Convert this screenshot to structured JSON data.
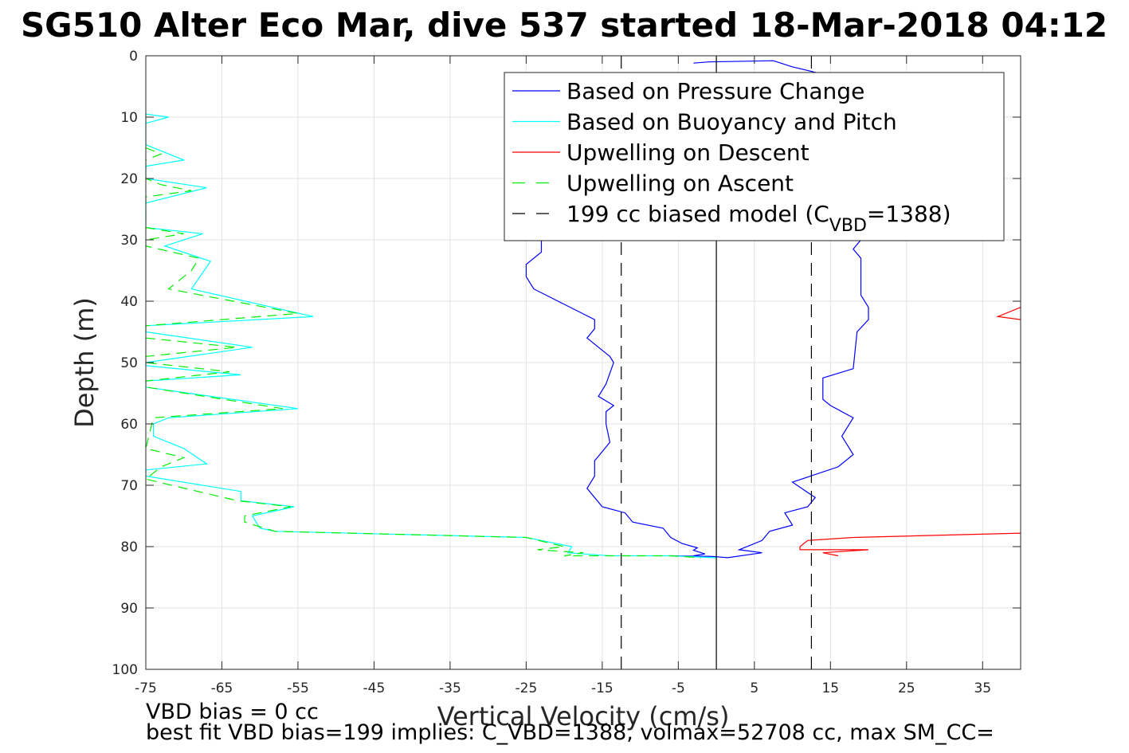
{
  "chart_data": {
    "type": "line",
    "title": "SG510 Alter Eco Mar, dive 537 started 18-Mar-2018 04:12",
    "xlabel": "Vertical Velocity (cm/s)",
    "ylabel": "Depth (m)",
    "xlim": [
      -75,
      40
    ],
    "ylim": [
      0,
      100
    ],
    "y_reversed": true,
    "grid": true,
    "x_ticks": [
      -75,
      -65,
      -55,
      -45,
      -35,
      -25,
      -15,
      -5,
      5,
      15,
      25,
      35
    ],
    "y_ticks": [
      0,
      10,
      20,
      30,
      40,
      50,
      60,
      70,
      80,
      90,
      100
    ],
    "legend_position": "top-right",
    "legend": [
      {
        "label": "Based on Pressure Change",
        "color": "#0000ff",
        "style": "solid"
      },
      {
        "label": "Based on Buoyancy and Pitch",
        "color": "#00ffff",
        "style": "solid"
      },
      {
        "label": "Upwelling on Descent",
        "color": "#ff0000",
        "style": "solid"
      },
      {
        "label": "Upwelling on Ascent",
        "color": "#00ee00",
        "style": "dashed"
      },
      {
        "label": "199 cc biased model (C",
        "sub": "VBD",
        "suffix": "=1388)",
        "color": "#000000",
        "style": "dashed"
      }
    ],
    "series": [
      {
        "name": "Based on Pressure Change (descent)",
        "color": "#0000ff",
        "style": "solid",
        "points": [
          [
            -3,
            1.2
          ],
          [
            -1,
            1.0
          ],
          [
            7.5,
            0.8
          ],
          [
            10,
            1.8
          ],
          [
            14,
            3.0
          ],
          [
            18,
            4.5
          ],
          [
            19,
            30
          ],
          [
            18,
            31.5
          ],
          [
            19,
            33
          ],
          [
            19,
            39
          ],
          [
            20,
            41
          ],
          [
            20,
            43
          ],
          [
            18.5,
            45
          ],
          [
            18,
            51
          ],
          [
            14,
            52.5
          ],
          [
            14,
            56
          ],
          [
            15,
            57
          ],
          [
            18,
            59
          ],
          [
            16.5,
            62
          ],
          [
            18,
            65
          ],
          [
            16,
            67
          ],
          [
            10,
            69.5
          ],
          [
            13,
            72
          ],
          [
            12,
            73.5
          ],
          [
            9,
            74.5
          ],
          [
            10,
            76.5
          ],
          [
            7,
            77.5
          ],
          [
            6,
            79
          ],
          [
            3,
            80.5
          ],
          [
            6,
            81
          ],
          [
            1.5,
            81.8
          ],
          [
            -0.5,
            81.6
          ],
          [
            -6,
            81.5
          ]
        ]
      },
      {
        "name": "Based on Pressure Change (ascent)",
        "color": "#0000ff",
        "style": "solid",
        "points": [
          [
            -3,
            81.5
          ],
          [
            -1.5,
            81.2
          ],
          [
            -3,
            80.6
          ],
          [
            -2.5,
            80.2
          ],
          [
            -4.5,
            79.5
          ],
          [
            -6,
            78.5
          ],
          [
            -7,
            77
          ],
          [
            -11,
            76
          ],
          [
            -12,
            74.5
          ],
          [
            -15,
            73.5
          ],
          [
            -17,
            70.5
          ],
          [
            -16,
            68.5
          ],
          [
            -16,
            66
          ],
          [
            -15,
            64.5
          ],
          [
            -14,
            63
          ],
          [
            -14.5,
            60
          ],
          [
            -14.5,
            58
          ],
          [
            -13.5,
            57
          ],
          [
            -15.5,
            55.5
          ],
          [
            -14.5,
            53.5
          ],
          [
            -13.5,
            50
          ],
          [
            -14,
            49
          ],
          [
            -17,
            46
          ],
          [
            -16,
            44.5
          ],
          [
            -16,
            43
          ],
          [
            -20,
            40.5
          ],
          [
            -24,
            38
          ],
          [
            -25,
            36
          ],
          [
            -25,
            34
          ],
          [
            -23,
            32
          ],
          [
            -23,
            30
          ]
        ]
      },
      {
        "name": "Based on Buoyancy and Pitch",
        "color": "#00ffff",
        "style": "solid",
        "points": [
          [
            -75,
            11
          ],
          [
            -72,
            10
          ],
          [
            -75,
            9.5
          ],
          [
            -75,
            14.5
          ],
          [
            -70,
            17
          ],
          [
            -75,
            18
          ],
          [
            -75,
            20
          ],
          [
            -67,
            21.5
          ],
          [
            -75,
            24
          ],
          [
            -75,
            28
          ],
          [
            -67.5,
            29
          ],
          [
            -72.5,
            31
          ],
          [
            -66.5,
            33.5
          ],
          [
            -69,
            38
          ],
          [
            -53,
            42.5
          ],
          [
            -75,
            44
          ],
          [
            -75,
            45
          ],
          [
            -61,
            47.5
          ],
          [
            -75,
            50
          ],
          [
            -75,
            50.5
          ],
          [
            -62.5,
            52
          ],
          [
            -75,
            53
          ],
          [
            -75,
            54
          ],
          [
            -55,
            57.5
          ],
          [
            -72,
            59
          ],
          [
            -74,
            60
          ],
          [
            -74,
            62
          ],
          [
            -70,
            64
          ],
          [
            -67,
            66.5
          ],
          [
            -75,
            67.5
          ],
          [
            -75,
            68.5
          ],
          [
            -62.5,
            71
          ],
          [
            -62.5,
            72.5
          ],
          [
            -55.5,
            73.5
          ],
          [
            -61,
            75
          ],
          [
            -60,
            77
          ],
          [
            -58,
            77.5
          ],
          [
            -25,
            78.5
          ],
          [
            -23,
            79
          ],
          [
            -19,
            80
          ],
          [
            -19.5,
            81
          ],
          [
            -14,
            81.5
          ],
          [
            -6,
            81.5
          ],
          [
            0,
            81.8
          ]
        ]
      },
      {
        "name": "Upwelling on Ascent",
        "color": "#00ee00",
        "style": "dashed",
        "points": [
          [
            -75,
            15
          ],
          [
            -73,
            16
          ],
          [
            -75,
            17
          ],
          [
            -75,
            20
          ],
          [
            -73,
            21
          ],
          [
            -69,
            22
          ],
          [
            -75,
            23
          ],
          [
            -75,
            28
          ],
          [
            -70,
            29
          ],
          [
            -75,
            30
          ],
          [
            -75,
            31
          ],
          [
            -68,
            33
          ],
          [
            -69,
            35
          ],
          [
            -72,
            38
          ],
          [
            -55,
            42
          ],
          [
            -75,
            44
          ],
          [
            -75,
            46
          ],
          [
            -63,
            47.5
          ],
          [
            -75,
            49
          ],
          [
            -75,
            50
          ],
          [
            -64,
            51.5
          ],
          [
            -75,
            53
          ],
          [
            -75,
            54
          ],
          [
            -57,
            57.5
          ],
          [
            -74,
            59
          ],
          [
            -75,
            64
          ],
          [
            -70,
            65.5
          ],
          [
            -73,
            67
          ],
          [
            -75,
            69
          ],
          [
            -63,
            72.5
          ],
          [
            -56,
            73.5
          ],
          [
            -62,
            75
          ],
          [
            -62,
            76
          ],
          [
            -58,
            77.5
          ],
          [
            -25,
            78.5
          ],
          [
            -20,
            80
          ],
          [
            -23.5,
            80.5
          ],
          [
            -17.5,
            81
          ],
          [
            -20,
            81.5
          ],
          [
            -6,
            81.5
          ],
          [
            -2,
            81.8
          ]
        ]
      },
      {
        "name": "Upwelling on Descent (upper)",
        "color": "#ff0000",
        "style": "solid",
        "points": [
          [
            40,
            41
          ],
          [
            37,
            42.5
          ],
          [
            40,
            43
          ]
        ]
      },
      {
        "name": "Upwelling on Descent (lower)",
        "color": "#ff0000",
        "style": "solid",
        "points": [
          [
            40,
            77.8
          ],
          [
            18,
            78.5
          ],
          [
            12,
            79
          ],
          [
            11,
            80
          ],
          [
            11,
            80.5
          ],
          [
            20,
            80.5
          ],
          [
            14,
            81
          ],
          [
            16,
            81.5
          ]
        ]
      },
      {
        "name": "199 cc biased model",
        "color": "#000000",
        "style": "dashed",
        "points": [
          [
            -12.5,
            0
          ],
          [
            -12.5,
            100
          ]
        ]
      },
      {
        "name": "199 cc biased model (positive)",
        "color": "#000000",
        "style": "dashed",
        "points": [
          [
            12.5,
            0
          ],
          [
            12.5,
            100
          ]
        ]
      },
      {
        "name": "zero line",
        "color": "#000000",
        "style": "solid",
        "points": [
          [
            0,
            0
          ],
          [
            0,
            100
          ]
        ]
      }
    ],
    "annotations": [
      "VBD bias = 0 cc",
      "best fit VBD bias=199 implies: C_VBD=1388, volmax=52708 cc, max SM_CC="
    ]
  }
}
